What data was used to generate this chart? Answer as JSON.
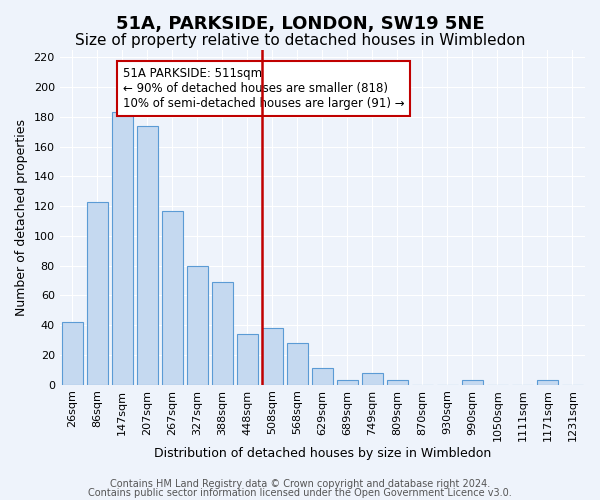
{
  "title": "51A, PARKSIDE, LONDON, SW19 5NE",
  "subtitle": "Size of property relative to detached houses in Wimbledon",
  "xlabel": "Distribution of detached houses by size in Wimbledon",
  "ylabel": "Number of detached properties",
  "bar_labels": [
    "26sqm",
    "86sqm",
    "147sqm",
    "207sqm",
    "267sqm",
    "327sqm",
    "388sqm",
    "448sqm",
    "508sqm",
    "568sqm",
    "629sqm",
    "689sqm",
    "749sqm",
    "809sqm",
    "870sqm",
    "930sqm",
    "990sqm",
    "1050sqm",
    "1111sqm",
    "1171sqm",
    "1231sqm"
  ],
  "bar_heights": [
    42,
    123,
    183,
    174,
    117,
    80,
    69,
    34,
    38,
    28,
    11,
    3,
    8,
    3,
    0,
    0,
    3,
    0,
    0,
    3,
    0
  ],
  "bar_color": "#c5d9f0",
  "bar_edge_color": "#5b9bd5",
  "highlight_line_index": 8,
  "highlight_line_color": "#c00000",
  "ylim": [
    0,
    225
  ],
  "yticks": [
    0,
    20,
    40,
    60,
    80,
    100,
    120,
    140,
    160,
    180,
    200,
    220
  ],
  "annotation_title": "51A PARKSIDE: 511sqm",
  "annotation_line1": "← 90% of detached houses are smaller (818)",
  "annotation_line2": "10% of semi-detached houses are larger (91) →",
  "annotation_box_edge_color": "#c00000",
  "footer1": "Contains HM Land Registry data © Crown copyright and database right 2024.",
  "footer2": "Contains public sector information licensed under the Open Government Licence v3.0.",
  "bg_color": "#eef3fb",
  "plot_bg_color": "#eef3fb",
  "grid_color": "#ffffff",
  "title_fontsize": 13,
  "subtitle_fontsize": 11,
  "axis_fontsize": 9,
  "tick_fontsize": 8,
  "footer_fontsize": 7
}
